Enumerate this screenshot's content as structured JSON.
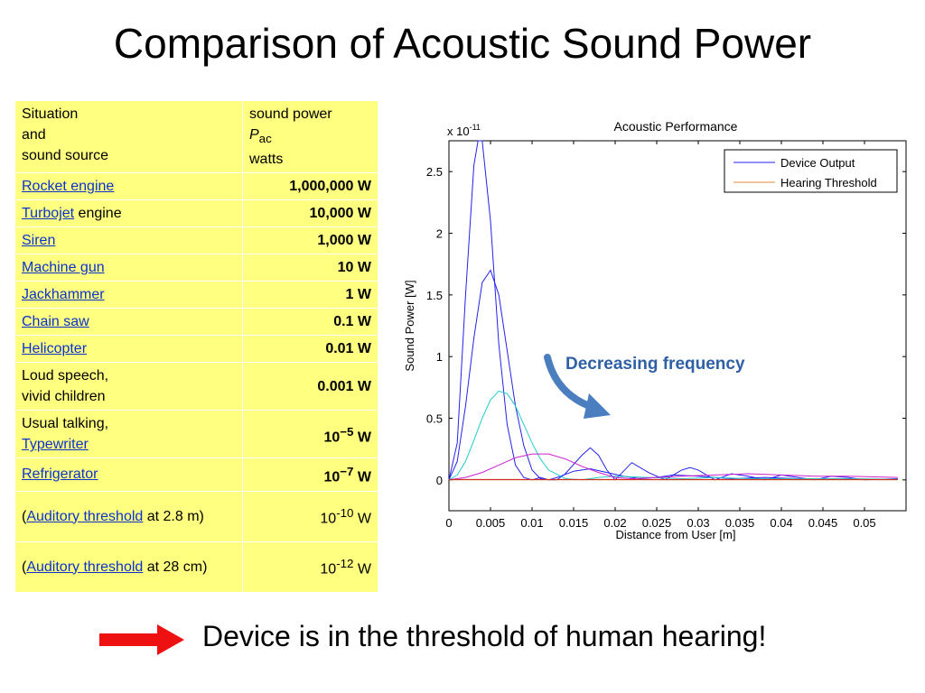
{
  "slide": {
    "title": "Comparison of Acoustic Sound Power",
    "callout": "Decreasing frequency",
    "footer": "Device is in the threshold of human hearing!",
    "arrow_color": "#ee1111",
    "curved_arrow_color": "#4a7ebf"
  },
  "table": {
    "header": {
      "situation_lines": [
        "Situation",
        "and",
        "sound source"
      ],
      "power_lines": [
        "sound power",
        "P",
        "ac",
        "watts"
      ]
    },
    "rows": [
      {
        "link": "Rocket engine",
        "text": "",
        "value": "1,000,000 W"
      },
      {
        "link": "Turbojet",
        "text": " engine",
        "value": "10,000 W"
      },
      {
        "link": "Siren",
        "text": "",
        "value": "1,000 W"
      },
      {
        "link": "Machine gun",
        "text": "",
        "value": "10 W"
      },
      {
        "link": "Jackhammer",
        "text": "",
        "value": "1 W"
      },
      {
        "link": "Chain saw",
        "text": "",
        "value": "0.1 W"
      },
      {
        "link": "Helicopter",
        "text": "",
        "value": "0.01 W"
      },
      {
        "line1": "Loud speech,",
        "line2": "vivid children",
        "value": "0.001 W"
      },
      {
        "line1": "Usual talking,",
        "link2": "Typewriter",
        "value_base": "10",
        "value_exp": "−5",
        "value_unit": " W"
      },
      {
        "link": "Refrigerator",
        "text": "",
        "value_base": "10",
        "value_exp": "−7",
        "value_unit": " W"
      },
      {
        "pre": "(",
        "link": "Auditory threshold",
        "post": " at 2.8 m)",
        "value_base": "10",
        "value_exp": "-10",
        "value_unit": " W"
      },
      {
        "pre": "(",
        "link": "Auditory threshold",
        "post": " at 28 cm)",
        "value_base": "10",
        "value_exp": "-12",
        "value_unit": " W"
      }
    ]
  },
  "chart_data": {
    "type": "line",
    "title": "Acoustic Performance",
    "xlabel": "Distance from User [m]",
    "ylabel": "Sound Power [W]",
    "y_multiplier": "x 10",
    "y_multiplier_exp": "-11",
    "xlim": [
      0,
      0.055
    ],
    "ylim": [
      -0.25,
      2.75
    ],
    "x_ticks": [
      "0",
      "0.005",
      "0.01",
      "0.015",
      "0.02",
      "0.025",
      "0.03",
      "0.035",
      "0.04",
      "0.045",
      "0.05"
    ],
    "x_tick_values": [
      0,
      0.005,
      0.01,
      0.015,
      0.02,
      0.025,
      0.03,
      0.035,
      0.04,
      0.045,
      0.05
    ],
    "y_ticks": [
      "0",
      "0.5",
      "1",
      "1.5",
      "2",
      "2.5"
    ],
    "y_tick_values": [
      0,
      0.5,
      1,
      1.5,
      2,
      2.5
    ],
    "legend_position": "top-right",
    "legend": [
      "Device Output",
      "Hearing Threshold"
    ],
    "series": [
      {
        "name": "Device Output",
        "color": "#2222ee",
        "x": [
          0,
          0.001,
          0.002,
          0.003,
          0.0035,
          0.004,
          0.005,
          0.006,
          0.007,
          0.008,
          0.009,
          0.01,
          0.011,
          0.012,
          0.013,
          0.014,
          0.016,
          0.017,
          0.018,
          0.019,
          0.02,
          0.022,
          0.024,
          0.026,
          0.028,
          0.029,
          0.03,
          0.032,
          0.034,
          0.036,
          0.038,
          0.04,
          0.042,
          0.044,
          0.046,
          0.048,
          0.05,
          0.054
        ],
        "y": [
          0,
          0.3,
          1.5,
          2.55,
          2.75,
          2.75,
          2.1,
          1.1,
          0.45,
          0.12,
          0.02,
          0.0,
          0.02,
          0.0,
          0.0,
          0.05,
          0.2,
          0.26,
          0.2,
          0.08,
          0.0,
          0.14,
          0.06,
          0.0,
          0.08,
          0.1,
          0.08,
          0.0,
          0.05,
          0.03,
          0.0,
          0.04,
          0.02,
          0.0,
          0.03,
          0.02,
          0.0,
          0.01
        ]
      },
      {
        "name": "",
        "color": "#2222ee",
        "x": [
          0,
          0.001,
          0.002,
          0.003,
          0.004,
          0.005,
          0.006,
          0.007,
          0.008,
          0.009,
          0.01,
          0.011,
          0.012,
          0.013,
          0.015,
          0.017,
          0.019,
          0.021,
          0.023,
          0.025,
          0.027,
          0.03,
          0.034,
          0.038,
          0.042,
          0.046,
          0.05,
          0.054
        ],
        "y": [
          0,
          0.15,
          0.6,
          1.15,
          1.6,
          1.7,
          1.5,
          1.05,
          0.6,
          0.28,
          0.08,
          0.01,
          0.0,
          0.02,
          0.07,
          0.09,
          0.06,
          0.03,
          0.01,
          0.02,
          0.04,
          0.03,
          0.01,
          0.02,
          0.01,
          0.01,
          0.005,
          0.005
        ]
      },
      {
        "name": "",
        "color": "#22cccc",
        "x": [
          0,
          0.001,
          0.002,
          0.003,
          0.004,
          0.005,
          0.006,
          0.007,
          0.008,
          0.009,
          0.01,
          0.011,
          0.012,
          0.014,
          0.016,
          0.018,
          0.02,
          0.024,
          0.028,
          0.032,
          0.036,
          0.04,
          0.044,
          0.048,
          0.054
        ],
        "y": [
          0,
          0.04,
          0.15,
          0.32,
          0.5,
          0.65,
          0.72,
          0.7,
          0.6,
          0.45,
          0.3,
          0.17,
          0.08,
          0.01,
          0.0,
          0.02,
          0.03,
          0.02,
          0.01,
          0.02,
          0.01,
          0.01,
          0.01,
          0.01,
          0.005
        ]
      },
      {
        "name": "",
        "color": "#cc22cc",
        "x": [
          0,
          0.002,
          0.004,
          0.006,
          0.008,
          0.01,
          0.012,
          0.014,
          0.016,
          0.018,
          0.02,
          0.022,
          0.025,
          0.028,
          0.032,
          0.036,
          0.04,
          0.044,
          0.048,
          0.054
        ],
        "y": [
          0,
          0.02,
          0.06,
          0.12,
          0.18,
          0.21,
          0.21,
          0.17,
          0.11,
          0.06,
          0.02,
          0.01,
          0.02,
          0.03,
          0.04,
          0.05,
          0.04,
          0.03,
          0.03,
          0.02
        ]
      },
      {
        "name": "Hearing Threshold",
        "color": "#e08a3a",
        "x": [
          0,
          0.054
        ],
        "y": [
          0.0,
          0.0
        ]
      },
      {
        "name": "",
        "color": "#cc2222",
        "x": [
          0,
          0.054
        ],
        "y": [
          0.003,
          0.003
        ]
      }
    ]
  }
}
